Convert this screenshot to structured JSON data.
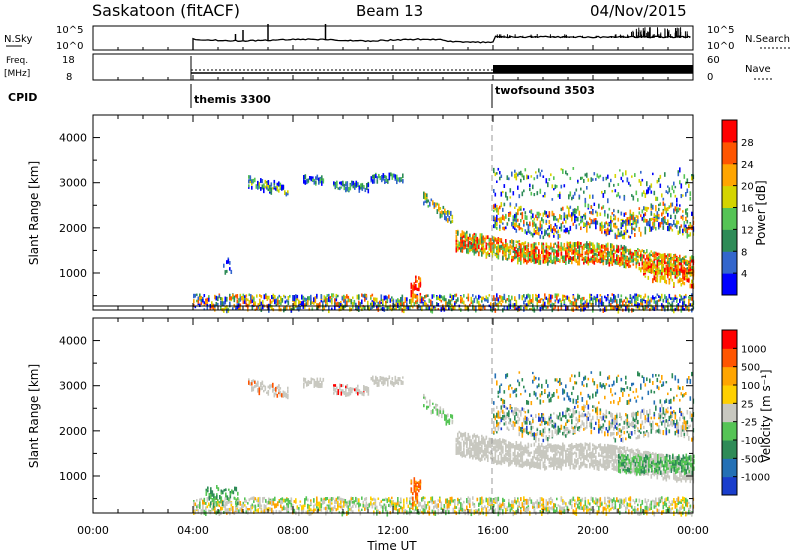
{
  "header": {
    "station": "Saskatoon (fitACF)",
    "beam": "Beam 13",
    "date": "04/Nov/2015"
  },
  "noise_panel": {
    "left_label": "N.Sky",
    "left_ticks": [
      "10^5",
      "10^0"
    ],
    "right_ticks": [
      "10^5",
      "10^0"
    ],
    "right_label": "N.Search"
  },
  "freq_panel": {
    "left_label_1": "Freq.",
    "left_label_2": "[MHz]",
    "left_ticks": [
      "18",
      "8"
    ],
    "right_ticks": [
      "60",
      "0"
    ],
    "right_label": "Nave"
  },
  "cpid": {
    "label": "CPID",
    "modes": [
      {
        "name": "themis 3300",
        "start": "04:00"
      },
      {
        "name": "twofsound 3503",
        "start": "16:00"
      }
    ]
  },
  "x_axis": {
    "label": "Time UT",
    "ticks": [
      "00:00",
      "04:00",
      "08:00",
      "12:00",
      "16:00",
      "20:00",
      "00:00"
    ]
  },
  "chart_data": [
    {
      "type": "heatmap",
      "title": "",
      "ylabel": "Slant Range [km]",
      "xlabel": "Time UT",
      "xlim": [
        0,
        24
      ],
      "ylim": [
        180,
        4500
      ],
      "yticks": [
        "4000",
        "3000",
        "2000",
        "1000"
      ],
      "colorbar": {
        "label": "Power [dB]",
        "ticks": [
          "28",
          "24",
          "20",
          "16",
          "12",
          "8",
          "4"
        ],
        "colors": [
          "#0000ff",
          "#3366cc",
          "#2e8b57",
          "#55c455",
          "#d4d400",
          "#ffa500",
          "#ff5500",
          "#ff0000"
        ]
      }
    },
    {
      "type": "heatmap",
      "title": "",
      "ylabel": "Slant Range [km]",
      "xlabel": "Time UT",
      "xlim": [
        0,
        24
      ],
      "ylim": [
        180,
        4500
      ],
      "yticks": [
        "4000",
        "3000",
        "2000",
        "1000"
      ],
      "colorbar": {
        "label": "Velocity [m s⁻¹]",
        "ticks": [
          "1000",
          "500",
          "100",
          "25",
          "-25",
          "-100",
          "-500",
          "-1000"
        ],
        "colors": [
          "#1a3ecc",
          "#2470b5",
          "#2e8b57",
          "#55c455",
          "#c8c8c0",
          "#ffd000",
          "#ffa500",
          "#ff5500",
          "#ff0000"
        ]
      }
    }
  ]
}
